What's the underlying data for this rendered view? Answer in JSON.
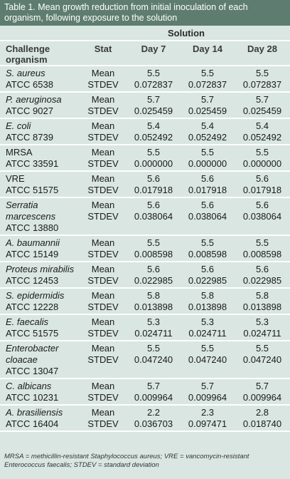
{
  "caption": "Table 1. Mean growth reduction from initial inoculation of each organism, following exposure to the solution",
  "group_header": "Solution",
  "columns": {
    "organism": "Challenge organism",
    "stat": "Stat",
    "day7": "Day 7",
    "day14": "Day 14",
    "day28": "Day 28"
  },
  "stat_labels": [
    "Mean",
    "STDEV"
  ],
  "rows": [
    {
      "name": "S. aureus",
      "strain": "ATCC 6538",
      "mean": [
        "5.5",
        "5.5",
        "5.5"
      ],
      "stdev": [
        "0.072837",
        "0.072837",
        "0.072837"
      ]
    },
    {
      "name": "P. aeruginosa",
      "strain": "ATCC 9027",
      "mean": [
        "5.7",
        "5.7",
        "5.7"
      ],
      "stdev": [
        "0.025459",
        "0.025459",
        "0.025459"
      ]
    },
    {
      "name": "E. coli",
      "strain": "ATCC 8739",
      "mean": [
        "5.4",
        "5.4",
        "5.4"
      ],
      "stdev": [
        "0.052492",
        "0.052492",
        "0.052492"
      ]
    },
    {
      "name": "MRSA",
      "strain": "ATCC 33591",
      "mean": [
        "5.5",
        "5.5",
        "5.5"
      ],
      "stdev": [
        "0.000000",
        "0.000000",
        "0.000000"
      ]
    },
    {
      "name": "VRE",
      "strain": "ATCC 51575",
      "mean": [
        "5.6",
        "5.6",
        "5.6"
      ],
      "stdev": [
        "0.017918",
        "0.017918",
        "0.017918"
      ]
    },
    {
      "name": "Serratia marcescens",
      "strain": "ATCC 13880",
      "mean": [
        "5.6",
        "5.6",
        "5.6"
      ],
      "stdev": [
        "0.038064",
        "0.038064",
        "0.038064"
      ]
    },
    {
      "name": "A. baumannii",
      "strain": "ATCC 15149",
      "mean": [
        "5.5",
        "5.5",
        "5.5"
      ],
      "stdev": [
        "0.008598",
        "0.008598",
        "0.008598"
      ]
    },
    {
      "name": "Proteus mirabilis",
      "strain": "ATCC 12453",
      "mean": [
        "5.6",
        "5.6",
        "5.6"
      ],
      "stdev": [
        "0.022985",
        "0.022985",
        "0.022985"
      ]
    },
    {
      "name": "S. epidermidis",
      "strain": "ATCC 12228",
      "mean": [
        "5.8",
        "5.8",
        "5.8"
      ],
      "stdev": [
        "0.013898",
        "0.013898",
        "0.013898"
      ]
    },
    {
      "name": "E. faecalis",
      "strain": "ATCC 51575",
      "mean": [
        "5.3",
        "5.3",
        "5.3"
      ],
      "stdev": [
        "0.024711",
        "0.024711",
        "0.024711"
      ]
    },
    {
      "name": "Enterobacter cloacae",
      "strain": "ATCC 13047",
      "mean": [
        "5.5",
        "5.5",
        "5.5"
      ],
      "stdev": [
        "0.047240",
        "0.047240",
        "0.047240"
      ]
    },
    {
      "name": "C. albicans",
      "strain": "ATCC 10231",
      "mean": [
        "5.7",
        "5.7",
        "5.7"
      ],
      "stdev": [
        "0.009964",
        "0.009964",
        "0.009964"
      ]
    },
    {
      "name": "A. brasiliensis",
      "strain": "ATCC 16404",
      "mean": [
        "2.2",
        "2.3",
        "2.8"
      ],
      "stdev": [
        "0.036703",
        "0.097471",
        "0.018740"
      ]
    }
  ],
  "footnote": "MRSA = methicillin-resistant Staphylococcus aureus; VRE = vancomycin-resistant Enterococcus faecalis; STDEV = standard deviation",
  "colors": {
    "caption_bg": "#5e7d70",
    "table_bg": "#d9e6e1",
    "rule": "#ffffff"
  }
}
